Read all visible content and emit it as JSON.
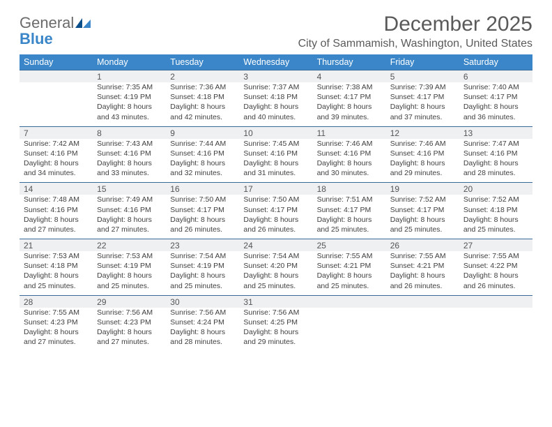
{
  "logo": {
    "general": "General",
    "blue": "Blue",
    "blue_color": "#3a86c8"
  },
  "title": "December 2025",
  "location": "City of Sammamish, Washington, United States",
  "colors": {
    "header_bg": "#3a86c8",
    "daynum_bg": "#eef0f2",
    "row_border": "#3a6a9a"
  },
  "day_headers": [
    "Sunday",
    "Monday",
    "Tuesday",
    "Wednesday",
    "Thursday",
    "Friday",
    "Saturday"
  ],
  "weeks": [
    [
      null,
      {
        "n": "1",
        "sr": "7:35 AM",
        "ss": "4:19 PM",
        "dl": "8 hours and 43 minutes."
      },
      {
        "n": "2",
        "sr": "7:36 AM",
        "ss": "4:18 PM",
        "dl": "8 hours and 42 minutes."
      },
      {
        "n": "3",
        "sr": "7:37 AM",
        "ss": "4:18 PM",
        "dl": "8 hours and 40 minutes."
      },
      {
        "n": "4",
        "sr": "7:38 AM",
        "ss": "4:17 PM",
        "dl": "8 hours and 39 minutes."
      },
      {
        "n": "5",
        "sr": "7:39 AM",
        "ss": "4:17 PM",
        "dl": "8 hours and 37 minutes."
      },
      {
        "n": "6",
        "sr": "7:40 AM",
        "ss": "4:17 PM",
        "dl": "8 hours and 36 minutes."
      }
    ],
    [
      {
        "n": "7",
        "sr": "7:42 AM",
        "ss": "4:16 PM",
        "dl": "8 hours and 34 minutes."
      },
      {
        "n": "8",
        "sr": "7:43 AM",
        "ss": "4:16 PM",
        "dl": "8 hours and 33 minutes."
      },
      {
        "n": "9",
        "sr": "7:44 AM",
        "ss": "4:16 PM",
        "dl": "8 hours and 32 minutes."
      },
      {
        "n": "10",
        "sr": "7:45 AM",
        "ss": "4:16 PM",
        "dl": "8 hours and 31 minutes."
      },
      {
        "n": "11",
        "sr": "7:46 AM",
        "ss": "4:16 PM",
        "dl": "8 hours and 30 minutes."
      },
      {
        "n": "12",
        "sr": "7:46 AM",
        "ss": "4:16 PM",
        "dl": "8 hours and 29 minutes."
      },
      {
        "n": "13",
        "sr": "7:47 AM",
        "ss": "4:16 PM",
        "dl": "8 hours and 28 minutes."
      }
    ],
    [
      {
        "n": "14",
        "sr": "7:48 AM",
        "ss": "4:16 PM",
        "dl": "8 hours and 27 minutes."
      },
      {
        "n": "15",
        "sr": "7:49 AM",
        "ss": "4:16 PM",
        "dl": "8 hours and 27 minutes."
      },
      {
        "n": "16",
        "sr": "7:50 AM",
        "ss": "4:17 PM",
        "dl": "8 hours and 26 minutes."
      },
      {
        "n": "17",
        "sr": "7:50 AM",
        "ss": "4:17 PM",
        "dl": "8 hours and 26 minutes."
      },
      {
        "n": "18",
        "sr": "7:51 AM",
        "ss": "4:17 PM",
        "dl": "8 hours and 25 minutes."
      },
      {
        "n": "19",
        "sr": "7:52 AM",
        "ss": "4:17 PM",
        "dl": "8 hours and 25 minutes."
      },
      {
        "n": "20",
        "sr": "7:52 AM",
        "ss": "4:18 PM",
        "dl": "8 hours and 25 minutes."
      }
    ],
    [
      {
        "n": "21",
        "sr": "7:53 AM",
        "ss": "4:18 PM",
        "dl": "8 hours and 25 minutes."
      },
      {
        "n": "22",
        "sr": "7:53 AM",
        "ss": "4:19 PM",
        "dl": "8 hours and 25 minutes."
      },
      {
        "n": "23",
        "sr": "7:54 AM",
        "ss": "4:19 PM",
        "dl": "8 hours and 25 minutes."
      },
      {
        "n": "24",
        "sr": "7:54 AM",
        "ss": "4:20 PM",
        "dl": "8 hours and 25 minutes."
      },
      {
        "n": "25",
        "sr": "7:55 AM",
        "ss": "4:21 PM",
        "dl": "8 hours and 25 minutes."
      },
      {
        "n": "26",
        "sr": "7:55 AM",
        "ss": "4:21 PM",
        "dl": "8 hours and 26 minutes."
      },
      {
        "n": "27",
        "sr": "7:55 AM",
        "ss": "4:22 PM",
        "dl": "8 hours and 26 minutes."
      }
    ],
    [
      {
        "n": "28",
        "sr": "7:55 AM",
        "ss": "4:23 PM",
        "dl": "8 hours and 27 minutes."
      },
      {
        "n": "29",
        "sr": "7:56 AM",
        "ss": "4:23 PM",
        "dl": "8 hours and 27 minutes."
      },
      {
        "n": "30",
        "sr": "7:56 AM",
        "ss": "4:24 PM",
        "dl": "8 hours and 28 minutes."
      },
      {
        "n": "31",
        "sr": "7:56 AM",
        "ss": "4:25 PM",
        "dl": "8 hours and 29 minutes."
      },
      null,
      null,
      null
    ]
  ],
  "labels": {
    "sunrise": "Sunrise: ",
    "sunset": "Sunset: ",
    "daylight": "Daylight: "
  }
}
